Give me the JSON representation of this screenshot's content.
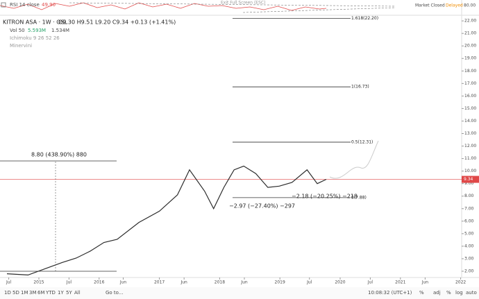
{
  "header": {
    "rsi": "RSI 14 close",
    "rsi_value": "49.90",
    "exit": "Exit Full Screen (ESC)",
    "market": "Market Closed",
    "delayed": "Delayed",
    "rsi_axis": "80.00"
  },
  "legend": {
    "symbol": "KITRON ASA · 1W · OSL",
    "ohlc": "O9.30 H9.51 L9.20 C9.34 +0.13 (+1.41%)",
    "volume": "Vol 50",
    "vol1": "5.593M",
    "vol2": "1.534M",
    "ichimoku": "Ichimoku 9 26 52 26",
    "minervini": "Minervini"
  },
  "chart_data": {
    "type": "line",
    "x": [
      2014.47,
      2014.82,
      2015.16,
      2015.39,
      2015.62,
      2015.85,
      2016.08,
      2016.3,
      2016.66,
      2017.0,
      2017.3,
      2017.5,
      2017.75,
      2017.9,
      2018.07,
      2018.24,
      2018.4,
      2018.6,
      2018.8,
      2018.99,
      2019.2,
      2019.45,
      2019.62,
      2019.77
    ],
    "series": [
      {
        "name": "KITRON ASA",
        "color": "#2b2b2b",
        "values": [
          1.8,
          1.7,
          2.3,
          2.7,
          3.05,
          3.6,
          4.3,
          4.55,
          5.9,
          6.8,
          8.1,
          10.1,
          8.4,
          7.0,
          8.7,
          10.1,
          10.4,
          9.8,
          8.7,
          8.8,
          9.1,
          10.1,
          9.0,
          9.34
        ]
      }
    ],
    "xlim": [
      2014.355,
      2022.016
    ],
    "xticks": [
      {
        "value": 2014.5,
        "label": "Jul"
      },
      2015,
      {
        "value": 2015.5,
        "label": "Jul"
      },
      2016,
      {
        "value": 2016.4,
        "label": "Jun"
      },
      2017,
      {
        "value": 2017.41,
        "label": "Jun"
      },
      2018,
      {
        "value": 2018.41,
        "label": "Jun"
      },
      2019,
      {
        "value": 2019.49,
        "label": "Jul"
      },
      2020,
      {
        "value": 2020.5,
        "label": "Jul"
      },
      2021,
      {
        "value": 2021.41,
        "label": "Jun"
      },
      2022
    ],
    "ylim": [
      1.5,
      22.45
    ],
    "yticks": [
      {
        "value": 2,
        "label": "2.00"
      },
      {
        "value": 3,
        "label": "3.00"
      },
      {
        "value": 4,
        "label": "4.00"
      },
      {
        "value": 5,
        "label": "5.00"
      },
      {
        "value": 6,
        "label": "6.00"
      },
      {
        "value": 7,
        "label": "7.00"
      },
      {
        "value": 8,
        "label": "8.00"
      },
      {
        "value": 9,
        "label": "9.00"
      },
      {
        "value": 10,
        "label": "10.00"
      },
      {
        "value": 11,
        "label": "11.00"
      },
      {
        "value": 12,
        "label": "12.00"
      },
      {
        "value": 13,
        "label": "13.00"
      },
      {
        "value": 14,
        "label": "14.00"
      },
      {
        "value": 15,
        "label": "15.00"
      },
      {
        "value": 16,
        "label": "16.00"
      },
      {
        "value": 17,
        "label": "17.00"
      },
      {
        "value": 18,
        "label": "18.00"
      },
      {
        "value": 19,
        "label": "19.00"
      },
      {
        "value": 20,
        "label": "20.00"
      },
      {
        "value": 21,
        "label": "21.00"
      },
      {
        "value": 22,
        "label": "22.00"
      }
    ],
    "fib_levels": [
      {
        "value": 22.2,
        "label": "1.618(22.20)"
      },
      {
        "value": 16.73,
        "label": "1(16.73)"
      },
      {
        "value": 12.31,
        "label": "0.5(12.31)"
      },
      {
        "value": 7.88,
        "label": "0(7.88)"
      }
    ],
    "last_price": {
      "value": 9.34,
      "label": "9.34"
    },
    "annotations": [
      "8.80 (438.90%) 880",
      "−2.97 (−27.40%) −297",
      "−2.18 (−20.25%) −218"
    ]
  },
  "toolbar": {
    "ranges": [
      "1D",
      "5D",
      "1M",
      "3M",
      "6M",
      "YTD",
      "1Y",
      "5Y",
      "All"
    ],
    "goto": "Go to...",
    "time": "10:08:32 (UTC+1)",
    "pct": "%",
    "adj": "adj",
    "pct2": "%",
    "log": "log",
    "auto": "auto"
  }
}
